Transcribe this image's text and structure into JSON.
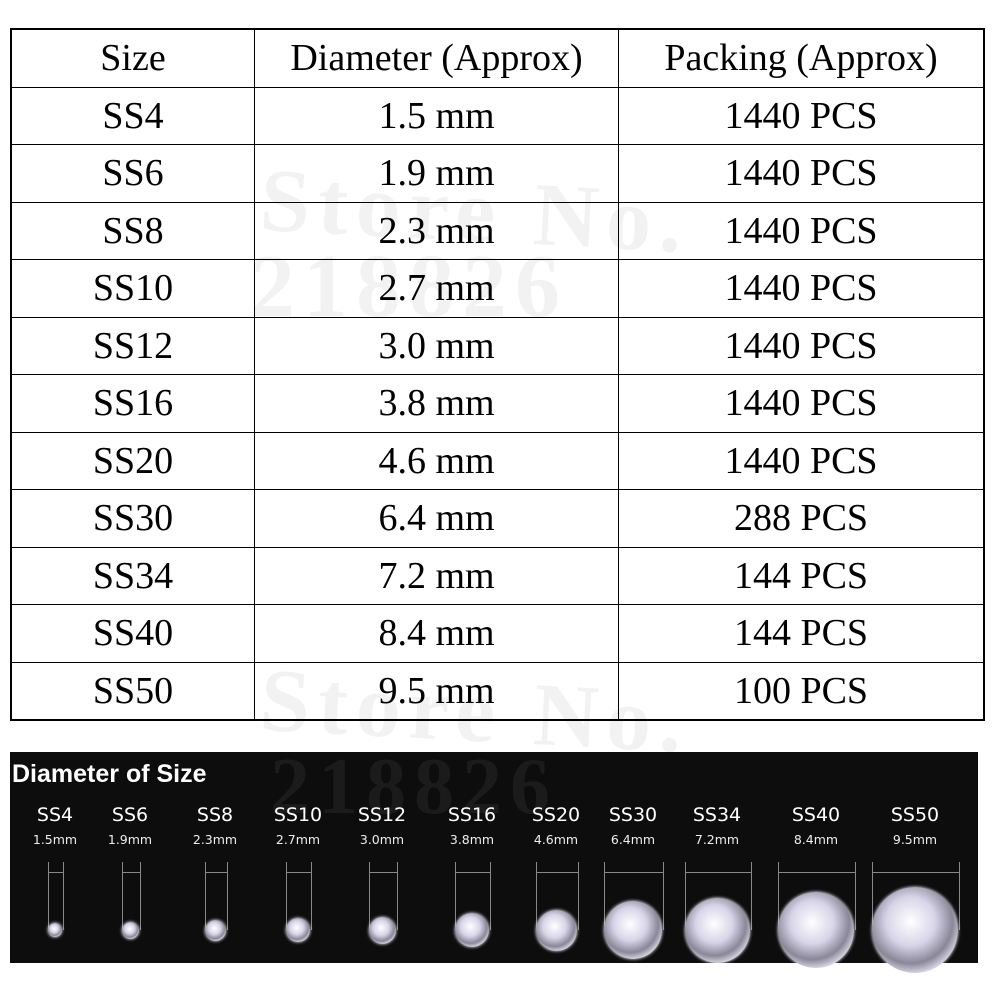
{
  "table": {
    "headers": [
      "Size",
      "Diameter (Approx)",
      "Packing (Approx)"
    ],
    "rows": [
      [
        "SS4",
        "1.5 mm",
        "1440 PCS"
      ],
      [
        "SS6",
        "1.9 mm",
        "1440 PCS"
      ],
      [
        "SS8",
        "2.3 mm",
        "1440 PCS"
      ],
      [
        "SS10",
        "2.7 mm",
        "1440 PCS"
      ],
      [
        "SS12",
        "3.0 mm",
        "1440 PCS"
      ],
      [
        "SS16",
        "3.8 mm",
        "1440 PCS"
      ],
      [
        "SS20",
        "4.6 mm",
        "1440 PCS"
      ],
      [
        "SS30",
        "6.4 mm",
        "288 PCS"
      ],
      [
        "SS34",
        "7.2 mm",
        "144 PCS"
      ],
      [
        "SS40",
        "8.4 mm",
        "144 PCS"
      ],
      [
        "SS50",
        "9.5 mm",
        "100 PCS"
      ]
    ]
  },
  "watermark": {
    "line1": "Store No.",
    "line2": "218826"
  },
  "panel": {
    "title": "Diameter of Size",
    "items": [
      {
        "size": "SS4",
        "diameter": "1.5mm",
        "mm": 1.5
      },
      {
        "size": "SS6",
        "diameter": "1.9mm",
        "mm": 1.9
      },
      {
        "size": "SS8",
        "diameter": "2.3mm",
        "mm": 2.3
      },
      {
        "size": "SS10",
        "diameter": "2.7mm",
        "mm": 2.7
      },
      {
        "size": "SS12",
        "diameter": "3.0mm",
        "mm": 3.0
      },
      {
        "size": "SS16",
        "diameter": "3.8mm",
        "mm": 3.8
      },
      {
        "size": "SS20",
        "diameter": "4.6mm",
        "mm": 4.6
      },
      {
        "size": "SS30",
        "diameter": "6.4mm",
        "mm": 6.4
      },
      {
        "size": "SS34",
        "diameter": "7.2mm",
        "mm": 7.2
      },
      {
        "size": "SS40",
        "diameter": "8.4mm",
        "mm": 8.4
      },
      {
        "size": "SS50",
        "diameter": "9.5mm",
        "mm": 9.5
      }
    ]
  }
}
